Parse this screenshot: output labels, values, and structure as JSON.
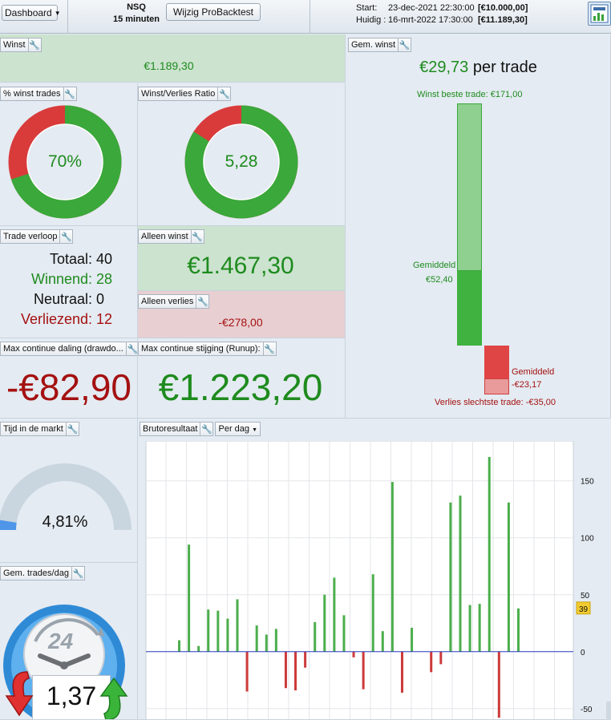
{
  "topbar": {
    "dashboard_label": "Dashboard",
    "instrument": "NSQ",
    "timeframe": "15 minuten",
    "edit_button": "Wijzig ProBacktest",
    "start_label": "Start:",
    "start_value": "23-dec-2021 22:30:00",
    "start_capital": "[€10.000,00]",
    "current_label": "Huidig :",
    "current_value": "16-mrt-2022 17:30:00",
    "current_capital": "[€11.189,30]"
  },
  "winst": {
    "title": "Winst",
    "value": "€1.189,30"
  },
  "win_pct": {
    "title": "% winst trades",
    "value": "70%",
    "fraction": 0.7
  },
  "wl_ratio": {
    "title": "Winst/Verlies Ratio",
    "value": "5,28",
    "fraction": 0.84
  },
  "gem_winst": {
    "title": "Gem. winst",
    "value": "€29,73",
    "suffix": "per trade",
    "best_label": "Winst beste trade: €171,00",
    "avg_win_label": "Gemiddeld",
    "avg_win_value": "€52,40",
    "avg_loss_label": "Gemiddeld",
    "avg_loss_value": "-€23,17",
    "worst_label": "Verlies slechtste trade: -€35,00",
    "best": 171.0,
    "avg_win": 52.4,
    "avg_loss": -23.17,
    "worst": -35.0
  },
  "trade_verloop": {
    "title": "Trade verloop",
    "rows": [
      {
        "label": "Totaal:",
        "value": "40"
      },
      {
        "label": "Winnend:",
        "value": "28"
      },
      {
        "label": "Neutraal:",
        "value": "0"
      },
      {
        "label": "Verliezend:",
        "value": "12"
      }
    ]
  },
  "alleen_winst": {
    "title": "Alleen winst",
    "value": "€1.467,30"
  },
  "alleen_verlies": {
    "title": "Alleen verlies",
    "value": "-€278,00"
  },
  "drawdown": {
    "title": "Max continue daling (drawdo...",
    "value": "-€82,90"
  },
  "runup": {
    "title": "Max continue stijging (Runup):",
    "value": "€1.223,20"
  },
  "tijd_markt": {
    "title": "Tijd in de markt",
    "value": "4,81%",
    "fraction": 0.0481
  },
  "trades_dag": {
    "title": "Gem. trades/dag",
    "value": "1,37",
    "clock_label": "24"
  },
  "brutoresultaat": {
    "title": "Brutoresultaat",
    "period": "Per dag",
    "current_marker": "39",
    "colors": {
      "positive": "#4cae4c",
      "negative": "#cc3a3a",
      "zero_line": "#2a3fbf"
    }
  },
  "chart_data": {
    "type": "bar",
    "title": "Brutoresultaat",
    "xlabel": "",
    "ylabel": "",
    "ylim": [
      -60,
      185
    ],
    "yticks": [
      150,
      100,
      50,
      0,
      -50
    ],
    "values": [
      10,
      94,
      5,
      37,
      36,
      29,
      46,
      -35,
      23,
      15,
      20,
      -32,
      -34,
      -14,
      26,
      50,
      65,
      32,
      -5,
      -33,
      68,
      18,
      149,
      -36,
      21,
      0,
      -18,
      -11,
      131,
      137,
      41,
      42,
      171,
      -58,
      131,
      38
    ]
  }
}
